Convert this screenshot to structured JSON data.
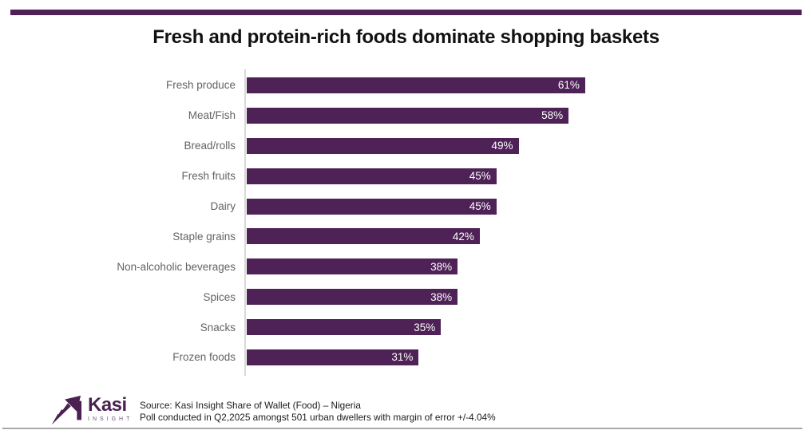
{
  "title": "Fresh and protein-rich foods dominate shopping baskets",
  "colors": {
    "accent_bar": "#4E2256",
    "bar": "#4E2256",
    "category_label": "#636363",
    "value_label": "#ffffff",
    "logo_purple": "#4A2151",
    "axis_line": "#d9d9d9",
    "divider": "#a8a8a8"
  },
  "chart_data": {
    "type": "bar",
    "orientation": "horizontal",
    "title": "Fresh and protein-rich foods dominate shopping baskets",
    "categories": [
      "Fresh produce",
      "Meat/Fish",
      "Bread/rolls",
      "Fresh fruits",
      "Dairy",
      "Staple grains",
      "Non-alcoholic beverages",
      "Spices",
      "Snacks",
      "Frozen foods"
    ],
    "values": [
      61,
      58,
      49,
      45,
      45,
      42,
      38,
      38,
      35,
      31
    ],
    "value_suffix": "%",
    "value_label_position": "inside-end",
    "grid": false,
    "legend": false,
    "sorted": "descending",
    "xlabel": "",
    "ylabel": ""
  },
  "footer": {
    "logo_text": "Kasi",
    "logo_subtext": "INSIGHT",
    "source_line1": "Source: Kasi Insight Share of Wallet (Food) – Nigeria",
    "source_line2": "Poll conducted in Q2,2025 amongst  501 urban dwellers with margin of error +/-4.04%"
  }
}
